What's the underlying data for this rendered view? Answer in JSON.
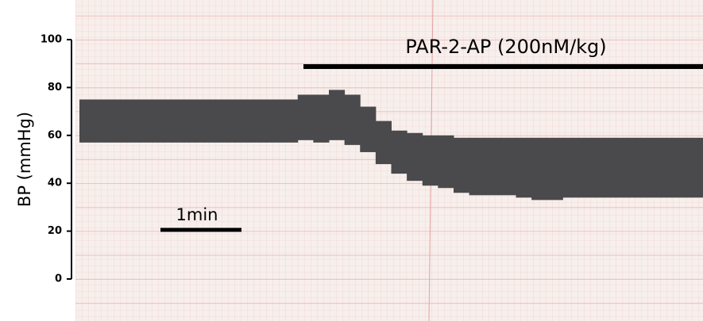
{
  "chart_data": {
    "type": "band",
    "y_label": "BP (mmHg)",
    "annotations": [
      "PAR-2-AP (200nM/kg)",
      "1min"
    ],
    "ylim": [
      0,
      100
    ],
    "yticks": [
      0,
      20,
      40,
      60,
      80,
      100
    ],
    "color": "#4a4a4c",
    "series": [
      {
        "values": [
          75,
          75,
          75,
          75,
          75,
          75,
          75,
          75,
          75,
          75,
          75,
          75,
          75,
          75,
          77,
          77,
          79,
          77,
          72,
          66,
          62,
          61,
          60,
          60,
          59,
          59,
          59,
          59,
          59,
          59,
          59,
          59,
          59,
          59,
          59,
          59,
          59,
          59,
          59,
          59
        ]
      },
      {
        "values": [
          57,
          57,
          57,
          57,
          57,
          57,
          57,
          57,
          57,
          57,
          57,
          57,
          57,
          57,
          58,
          57,
          58,
          56,
          53,
          48,
          44,
          41,
          39,
          38,
          36,
          35,
          35,
          35,
          34,
          33,
          33,
          34,
          34,
          34,
          34,
          34,
          34,
          34,
          34,
          34
        ]
      }
    ]
  }
}
